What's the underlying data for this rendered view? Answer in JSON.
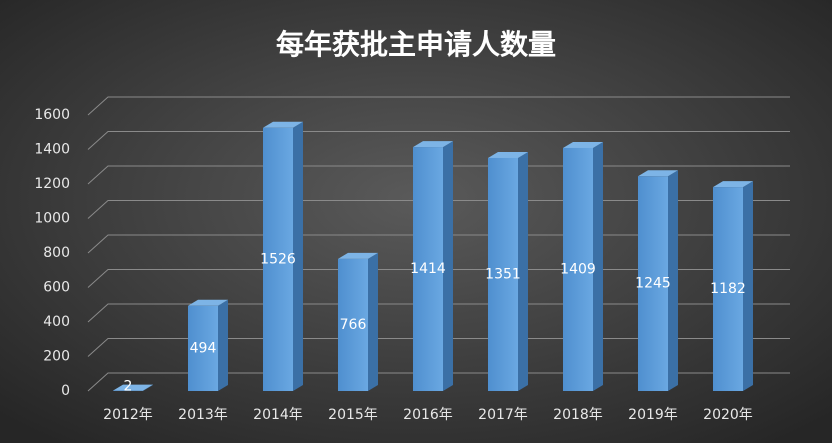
{
  "chart_data": {
    "type": "bar3d",
    "title": "每年获批主申请人数量",
    "categories": [
      "2012年",
      "2013年",
      "2014年",
      "2015年",
      "2016年",
      "2017年",
      "2018年",
      "2019年",
      "2020年"
    ],
    "values": [
      2,
      494,
      1526,
      766,
      1414,
      1351,
      1409,
      1245,
      1182
    ],
    "color": "#5b9bd5",
    "ylim": [
      0,
      1600
    ],
    "yticks": [
      0,
      200,
      400,
      600,
      800,
      1000,
      1200,
      1400,
      1600
    ],
    "grid": true
  }
}
